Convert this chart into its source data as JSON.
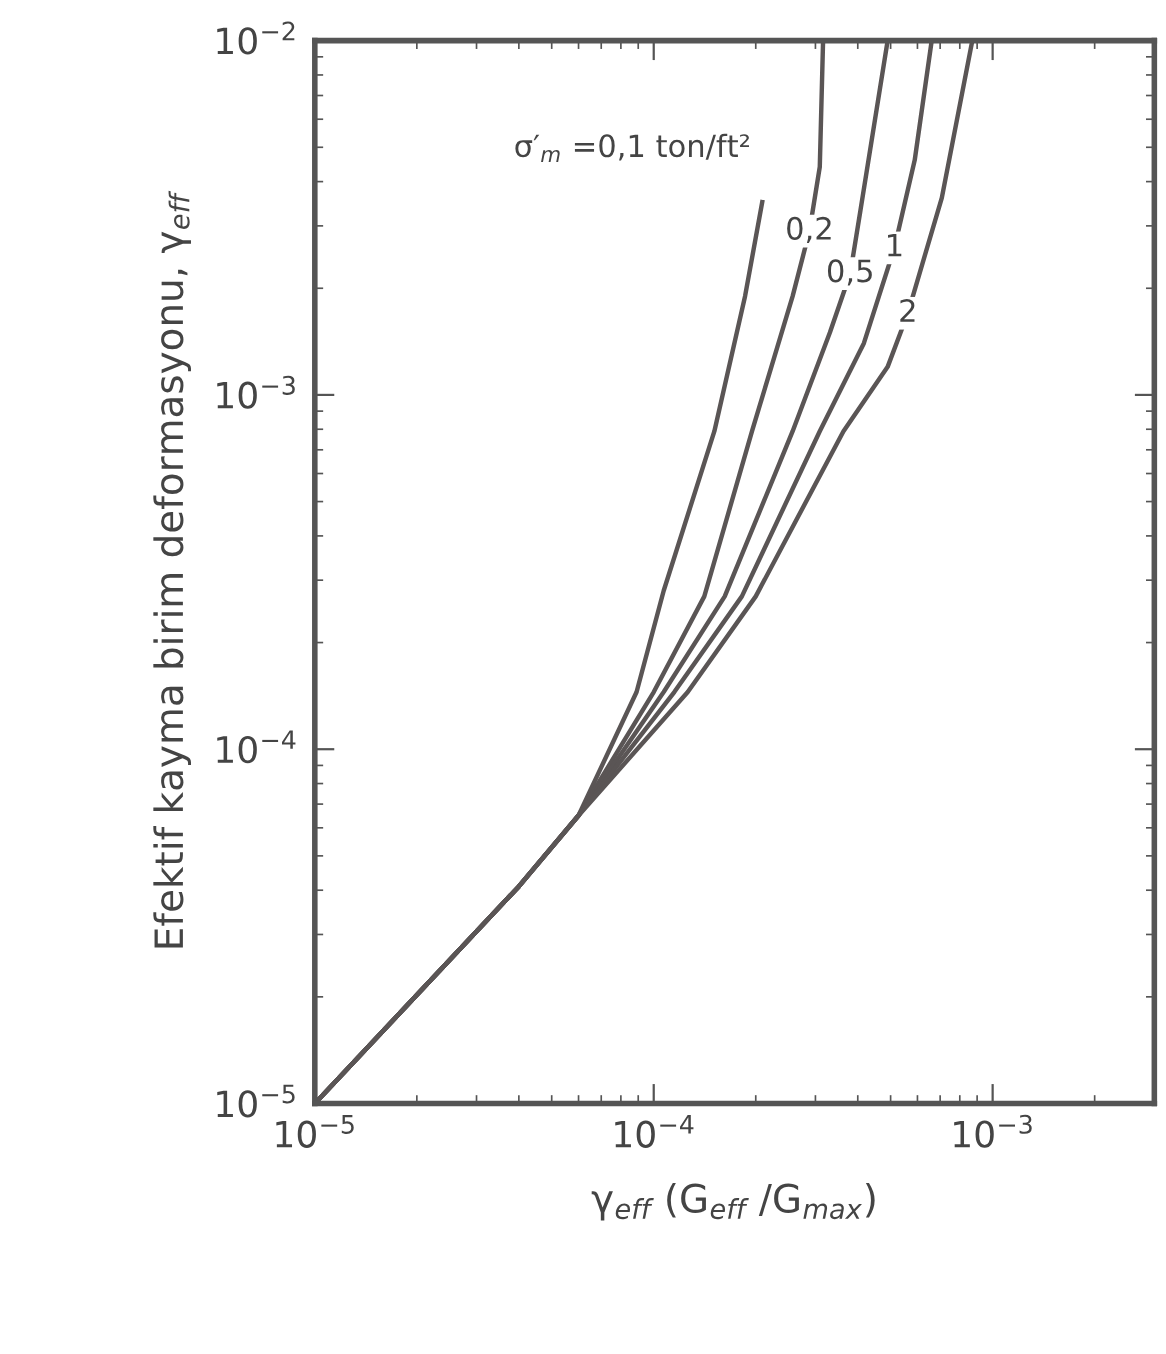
{
  "chart_data": {
    "type": "line",
    "xlabel": "γ$_{eff}$ (G$_{eff}$ /G$_{max}$)",
    "ylabel": "Efektif kayma birim deformasyonu, γ$_{eff}$",
    "log": "xy",
    "xlim": [
      1e-05,
      0.003
    ],
    "ylim": [
      1e-05,
      0.01
    ],
    "xticks": [
      {
        "value": 1e-05,
        "label": "10$^{−5}$"
      },
      {
        "value": 0.0001,
        "label": "10$^{−4}$"
      },
      {
        "value": 0.001,
        "label": "10$^{−3}$"
      }
    ],
    "yticks": [
      {
        "value": 1e-05,
        "label": "10$^{−5}$"
      },
      {
        "value": 0.0001,
        "label": "10$^{−4}$"
      },
      {
        "value": 0.001,
        "label": "10$^{−3}$"
      },
      {
        "value": 0.01,
        "label": "10$^{−2}$"
      }
    ],
    "grid": false,
    "marker": "none",
    "line_style": "solid",
    "series": [
      {
        "name": "σ′$_{m}$ =0,1 ton/ft²",
        "color": "#5a5555",
        "x": [
          1e-05,
          4e-05,
          6e-05,
          8.9e-05,
          0.000107,
          0.000151,
          0.000186,
          0.000209
        ],
        "values": [
          1e-05,
          4.1e-05,
          6.5e-05,
          0.000145,
          0.00028,
          0.00079,
          0.0019,
          0.0035
        ]
      },
      {
        "name": "0,2",
        "color": "#5a5555",
        "x": [
          1e-05,
          4e-05,
          6e-05,
          0.0001,
          0.000141,
          0.000195,
          0.000257,
          0.000288,
          0.000309,
          0.000316
        ],
        "values": [
          1e-05,
          4.1e-05,
          6.5e-05,
          0.000145,
          0.00027,
          0.00079,
          0.0019,
          0.0029,
          0.0044,
          0.01
        ]
      },
      {
        "name": "0,5",
        "color": "#5a5555",
        "x": [
          1e-05,
          4e-05,
          6e-05,
          0.000107,
          0.000162,
          0.000257,
          0.000331,
          0.00038,
          0.000407,
          0.00049
        ],
        "values": [
          1e-05,
          4.1e-05,
          6.5e-05,
          0.000145,
          0.00027,
          0.00079,
          0.0015,
          0.0022,
          0.0033,
          0.01
        ]
      },
      {
        "name": "1",
        "color": "#5a5555",
        "x": [
          1e-05,
          4e-05,
          6e-05,
          0.000115,
          0.000182,
          0.000309,
          0.000417,
          0.000513,
          0.000589,
          0.000661
        ],
        "values": [
          1e-05,
          4.1e-05,
          6.5e-05,
          0.000145,
          0.00027,
          0.00079,
          0.0014,
          0.0026,
          0.0046,
          0.01
        ]
      },
      {
        "name": "2",
        "color": "#5a5555",
        "x": [
          1e-05,
          4e-05,
          6e-05,
          0.000126,
          0.0002,
          0.000363,
          0.00049,
          0.000562,
          0.000708,
          0.000871
        ],
        "values": [
          1e-05,
          4.1e-05,
          6.5e-05,
          0.000145,
          0.00027,
          0.00079,
          0.0012,
          0.0017,
          0.0036,
          0.01
        ]
      }
    ]
  }
}
